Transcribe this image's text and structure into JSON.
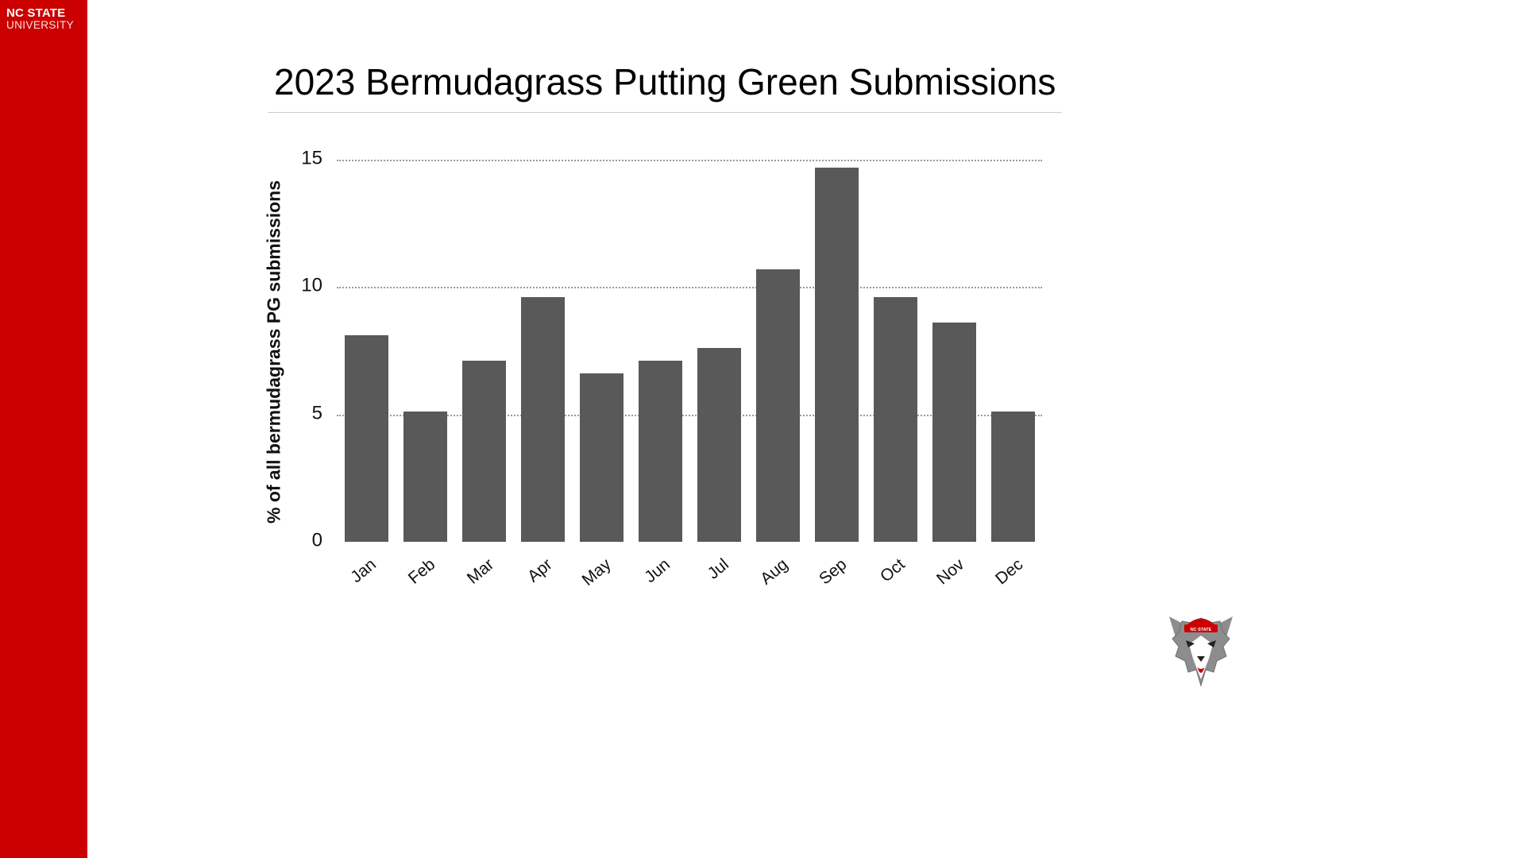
{
  "sidebar": {
    "logo_line1": "NC STATE",
    "logo_line2": "UNIVERSITY",
    "color": "#CC0000"
  },
  "title": "2023 Bermudagrass Putting Green Submissions",
  "chart_data": {
    "type": "bar",
    "title": "2023 Bermudagrass Putting Green Submissions",
    "categories": [
      "Jan",
      "Feb",
      "Mar",
      "Apr",
      "May",
      "Jun",
      "Jul",
      "Aug",
      "Sep",
      "Oct",
      "Nov",
      "Dec"
    ],
    "values": [
      8.1,
      5.1,
      7.1,
      9.6,
      6.6,
      7.1,
      7.6,
      10.7,
      14.7,
      9.6,
      8.6,
      5.1
    ],
    "xlabel": "",
    "ylabel": "% of all bermudagrass PG submissions",
    "ylim": [
      0,
      15
    ],
    "yticks": [
      0,
      5,
      10,
      15
    ],
    "grid": "horizontal dotted gridlines at y ticks, no baseline axis",
    "legend": "none",
    "bar_color": "#595959",
    "gridline_color": "#9a9a9a"
  },
  "footer": {
    "mascot_hat_text": "NC STATE"
  },
  "icons": {
    "wolf_mascot": "nc-state-wolf-head-with-red-cap"
  }
}
